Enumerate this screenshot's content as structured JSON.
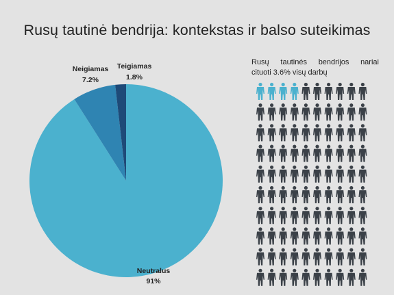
{
  "title": "Rusų tautinė bendrija: kontekstas ir balso suteikimas",
  "chart_data": {
    "type": "pie",
    "title": "Rusų tautinė bendrija: kontekstas ir balso suteikimas",
    "slices": [
      {
        "label": "Neutralus",
        "display": "91%",
        "value": 91,
        "color": "#4bb1ce"
      },
      {
        "label": "Neigiamas",
        "display": "7.2%",
        "value": 7.2,
        "color": "#2f84b2"
      },
      {
        "label": "Teigiamas",
        "display": "1.8%",
        "value": 1.8,
        "color": "#1e4a78"
      }
    ]
  },
  "pictogram": {
    "note_words": [
      "Rusų",
      "tautinės",
      "bendrijos",
      "nariai"
    ],
    "note_line2": "cituoti  3.6% visų darbų",
    "rows": 10,
    "cols": 10,
    "highlighted": 4,
    "highlight_color": "#4bb1ce",
    "base_color": "#3b4148",
    "icon": "person-icon"
  }
}
